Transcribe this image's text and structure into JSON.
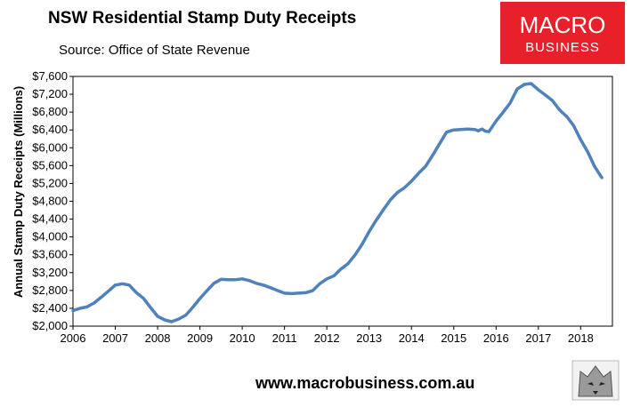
{
  "header": {
    "title": "NSW Residential Stamp Duty Receipts",
    "subtitle": "Source: Office of State Revenue"
  },
  "logo": {
    "line1": "MACRO",
    "line2": "BUSINESS",
    "color": "#e8202a"
  },
  "footer": {
    "url": "www.macrobusiness.com.au",
    "mascot_icon": "wolf-mascot-icon"
  },
  "chart_data": {
    "type": "line",
    "title": "NSW Residential Stamp Duty Receipts",
    "subtitle": "Source: Office of State Revenue",
    "xlabel": "",
    "ylabel": "Annual Stamp Duty Receipts (Millions)",
    "ylim": [
      2000,
      7600
    ],
    "xlim": [
      2006,
      2018.75
    ],
    "grid": false,
    "y_ticks": [
      "$2,000",
      "$2,400",
      "$2,800",
      "$3,200",
      "$3,600",
      "$4,000",
      "$4,400",
      "$4,800",
      "$5,200",
      "$5,600",
      "$6,000",
      "$6,400",
      "$6,800",
      "$7,200",
      "$7,600"
    ],
    "x_ticks": [
      "2006",
      "2007",
      "2008",
      "2009",
      "2010",
      "2011",
      "2012",
      "2013",
      "2014",
      "2015",
      "2016",
      "2017",
      "2018"
    ],
    "line_color": "#4f81bd",
    "series": [
      {
        "x": [
          2006.0,
          2006.17,
          2006.33,
          2006.5,
          2006.67,
          2006.83,
          2007.0,
          2007.17,
          2007.33,
          2007.5,
          2007.67,
          2007.83,
          2008.0,
          2008.17,
          2008.33,
          2008.5,
          2008.67,
          2008.83,
          2009.0,
          2009.17,
          2009.33,
          2009.5,
          2009.67,
          2009.83,
          2010.0,
          2010.17,
          2010.33,
          2010.5,
          2010.67,
          2010.83,
          2011.0,
          2011.17,
          2011.33,
          2011.5,
          2011.67,
          2011.83,
          2012.0,
          2012.17,
          2012.33,
          2012.5,
          2012.67,
          2012.83,
          2013.0,
          2013.17,
          2013.33,
          2013.5,
          2013.67,
          2013.83,
          2014.0,
          2014.17,
          2014.33,
          2014.5,
          2014.67,
          2014.83,
          2015.0,
          2015.17,
          2015.33,
          2015.5,
          2015.58,
          2015.67,
          2015.75,
          2015.83,
          2016.0,
          2016.17,
          2016.33,
          2016.5,
          2016.67,
          2016.83,
          2017.0,
          2017.17,
          2017.33,
          2017.5,
          2017.67,
          2017.83,
          2018.0,
          2018.17,
          2018.33,
          2018.5
        ],
        "values": [
          2350,
          2400,
          2430,
          2520,
          2650,
          2780,
          2920,
          2950,
          2920,
          2750,
          2620,
          2420,
          2220,
          2140,
          2100,
          2160,
          2250,
          2420,
          2620,
          2800,
          2960,
          3050,
          3040,
          3040,
          3060,
          3020,
          2960,
          2920,
          2860,
          2800,
          2740,
          2730,
          2740,
          2750,
          2800,
          2950,
          3060,
          3130,
          3280,
          3400,
          3600,
          3830,
          4120,
          4380,
          4600,
          4830,
          5000,
          5100,
          5250,
          5430,
          5580,
          5830,
          6100,
          6350,
          6400,
          6410,
          6420,
          6410,
          6380,
          6420,
          6370,
          6360,
          6600,
          6800,
          7000,
          7320,
          7420,
          7440,
          7300,
          7180,
          7060,
          6850,
          6700,
          6500,
          6180,
          5900,
          5580,
          5330
        ]
      }
    ]
  }
}
